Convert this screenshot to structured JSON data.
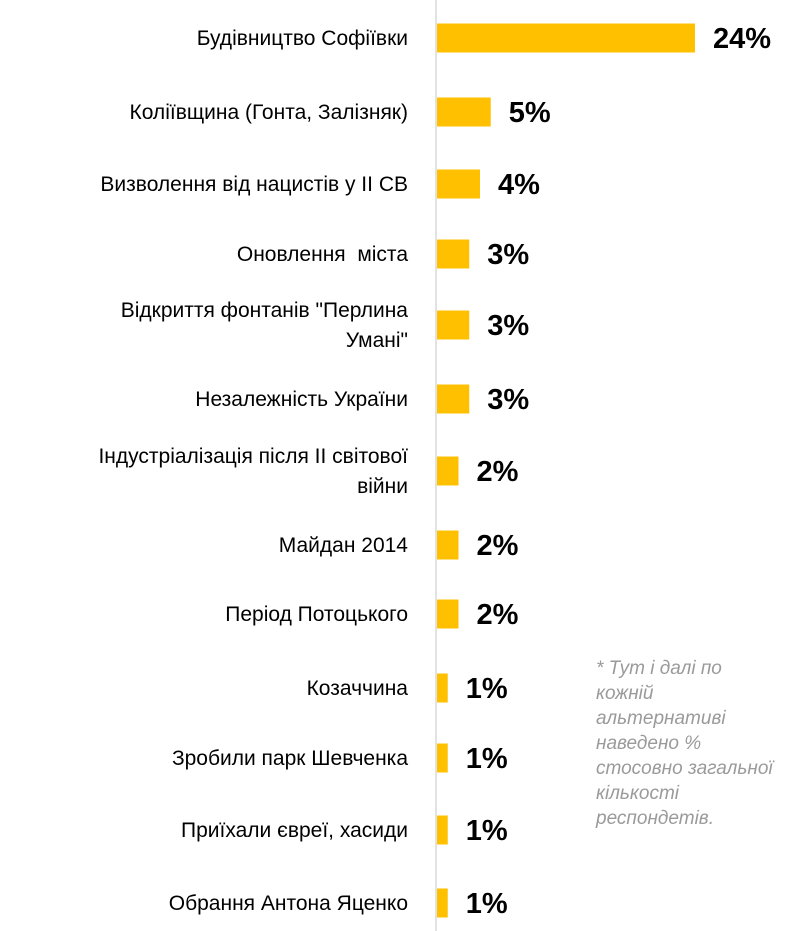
{
  "chart_data": {
    "type": "bar",
    "orientation": "horizontal",
    "categories": [
      "Будівництво Софіївки",
      "Коліївщина (Гонта, Залізняк)",
      "Визволення від нацистів у ІІ СВ",
      "Оновлення  міста",
      "Відкриття фонтанів \"Перлина Умані\"",
      "Незалежність України",
      "Індустріалізація після ІІ світової війни",
      "Майдан 2014",
      "Період Потоцького",
      "Козаччина",
      "Зробили парк Шевченка",
      "Приїхали євреї, хасиди",
      "Обрання Антона Яценко"
    ],
    "category_lines": [
      [
        "Будівництво Софіївки"
      ],
      [
        "Коліївщина (Гонта, Залізняк)"
      ],
      [
        "Визволення від нацистів у ІІ СВ"
      ],
      [
        "Оновлення  міста"
      ],
      [
        "Відкриття фонтанів \"Перлина",
        "Умані\""
      ],
      [
        "Незалежність України"
      ],
      [
        "Індустріалізація після ІІ світової",
        "війни"
      ],
      [
        "Майдан 2014"
      ],
      [
        "Період Потоцького"
      ],
      [
        "Козаччина"
      ],
      [
        "Зробили парк Шевченка"
      ],
      [
        "Приїхали євреї, хасиди"
      ],
      [
        "Обрання Антона Яценко"
      ]
    ],
    "values": [
      24,
      5,
      4,
      3,
      3,
      3,
      2,
      2,
      2,
      1,
      1,
      1,
      1
    ],
    "value_labels": [
      "24%",
      "5%",
      "4%",
      "3%",
      "3%",
      "3%",
      "2%",
      "2%",
      "2%",
      "1%",
      "1%",
      "1%",
      "1%"
    ],
    "unit": "%",
    "bar_color": "#FFC000",
    "axis_color": "#d9d9d9",
    "legend": "none",
    "grid": false
  },
  "note": "* Тут і далі по кожній альтернативі наведено % стосовно загальної кількості респондетів."
}
